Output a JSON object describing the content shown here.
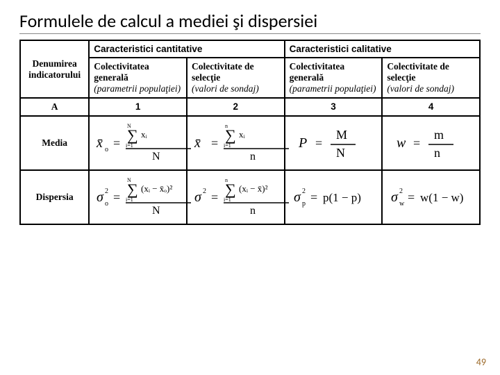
{
  "title": "Formulele de calcul a mediei şi dispersiei",
  "page_number": "49",
  "headers": {
    "indicator": "Denumirea indicatorului",
    "cant": "Caracteristici cantitative",
    "cal": "Caracteristici calitative",
    "sub1a": "Colectivitatea generală",
    "sub1b": "(parametrii populaţiei)",
    "sub2a": "Colectivitate  de selecţie",
    "sub2b": "(valori de sondaj)",
    "sub3a": "Colectivitatea generală",
    "sub3b": "(parametrii populaţiei)",
    "sub4a": "Colectivitate  de selecţie",
    "sub4b": "(valori de sondaj)"
  },
  "rows": {
    "A": "A",
    "nums": [
      "1",
      "2",
      "3",
      "4"
    ],
    "media": "Media",
    "dispersia": "Dispersia"
  },
  "formulas": {
    "mean_pop_q": {
      "lhs": "x̄",
      "sub_lhs": "o",
      "sum_var": "xᵢ",
      "lim_lo": "i=1",
      "lim_hi": "N",
      "denom": "N"
    },
    "mean_sel_q": {
      "lhs": "x̄",
      "sub_lhs": "",
      "sum_var": "xᵢ",
      "lim_lo": "i=1",
      "lim_hi": "n",
      "denom": "n"
    },
    "mean_pop_c": {
      "lhs": "P",
      "rhs_num": "M",
      "rhs_den": "N"
    },
    "mean_sel_c": {
      "lhs": "w",
      "rhs_num": "m",
      "rhs_den": "n"
    },
    "disp_pop_q": {
      "lhs": "σ",
      "sub_lhs": "o",
      "sup_lhs": "2",
      "sum_var": "(xᵢ − x̄ₒ)²",
      "lim_lo": "i=1",
      "lim_hi": "N",
      "denom": "N"
    },
    "disp_sel_q": {
      "lhs": "σ",
      "sub_lhs": "",
      "sup_lhs": "2",
      "sum_var": "(xᵢ − x̄)²",
      "lim_lo": "i=1",
      "lim_hi": "n",
      "denom": "n"
    },
    "disp_pop_c": {
      "lhs": "σ",
      "sub_lhs": "p",
      "sup_lhs": "2",
      "rhs": "p(1 − p)"
    },
    "disp_sel_c": {
      "lhs": "σ",
      "sub_lhs": "w",
      "sup_lhs": "2",
      "rhs": "w(1 − w)"
    }
  },
  "colors": {
    "title": "#000000",
    "border": "#000000",
    "pagenum": "#9c6a2a",
    "bg": "#ffffff"
  }
}
